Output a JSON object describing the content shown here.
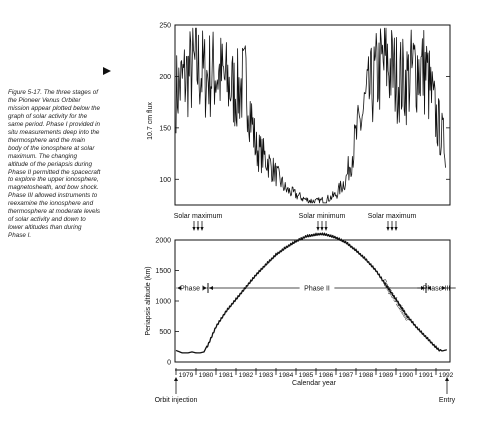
{
  "caption": {
    "lines": [
      "Figure 5-17. The three stages of",
      "the Pioneer Venus Orbiter",
      "mission appear plotted below the",
      "graph of solar activity for the",
      "same period. Phase I provided in",
      "situ measurements deep into the",
      "thermosphere and the main",
      "body of the ionosphere at solar",
      "maximum. The changing",
      "altitude of the periapsis during",
      "Phase II permitted the spacecraft",
      "to explore the upper ionosphere,",
      "magnetosheath, and bow shock.",
      "Phase III allowed instruments to",
      "reexamine the ionosphere and",
      "thermosphere at moderate levels",
      "of solar activity and down to",
      "lower altitudes than during",
      "Phase I."
    ]
  },
  "chart_data": [
    {
      "type": "line",
      "title": "",
      "ylabel": "10.7 cm flux",
      "ylim": [
        75,
        250
      ],
      "yticks": [
        100,
        150,
        200,
        250
      ],
      "x_range": [
        1978.95,
        1992.7
      ],
      "grid": false,
      "series": [
        {
          "x": [
            1979.0,
            1979.5,
            1980.0,
            1980.5,
            1981.0,
            1981.5,
            1982.0,
            1982.5,
            1983.0,
            1983.5,
            1984.0,
            1984.5,
            1985.0,
            1985.5,
            1986.0,
            1986.5,
            1987.0,
            1987.5,
            1988.0,
            1988.5,
            1989.0,
            1989.5,
            1990.0,
            1990.5,
            1991.0,
            1991.5,
            1992.0,
            1992.5
          ],
          "y": [
            185,
            200,
            210,
            200,
            205,
            195,
            185,
            195,
            130,
            120,
            105,
            90,
            85,
            80,
            78,
            80,
            85,
            100,
            140,
            175,
            200,
            215,
            200,
            195,
            210,
            205,
            160,
            130
          ]
        }
      ],
      "annotations": [
        {
          "label": "Solar maximum",
          "x": 1980.1
        },
        {
          "label": "Solar minimum",
          "x": 1986.3
        },
        {
          "label": "Solar maximum",
          "x": 1989.8
        }
      ]
    },
    {
      "type": "line",
      "title": "",
      "xlabel": "Calendar year",
      "ylabel": "Periapsis altitude (km)",
      "ylim": [
        0,
        2000
      ],
      "yticks": [
        0,
        500,
        1000,
        1500,
        2000
      ],
      "x_range": [
        1978.95,
        1992.7
      ],
      "grid": false,
      "tick_labels": [
        "1979",
        "1980",
        "1981",
        "1982",
        "1983",
        "1984",
        "1985",
        "1986",
        "1987",
        "1988",
        "1989",
        "1990",
        "1991",
        "1992"
      ],
      "series": [
        {
          "name": "Periapsis altitude",
          "x": [
            1979.0,
            1979.3,
            1979.6,
            1979.8,
            1980.0,
            1980.2,
            1980.4,
            1980.6,
            1980.8,
            1981.0,
            1981.5,
            1982.0,
            1982.5,
            1983.0,
            1983.5,
            1984.0,
            1984.5,
            1985.0,
            1985.5,
            1986.0,
            1986.25,
            1986.5,
            1987.0,
            1987.5,
            1988.0,
            1988.5,
            1989.0,
            1989.5,
            1990.0,
            1990.5,
            1991.0,
            1991.5,
            1992.0,
            1992.3,
            1992.55
          ],
          "y": [
            190,
            150,
            150,
            165,
            150,
            150,
            165,
            300,
            450,
            600,
            850,
            1050,
            1250,
            1450,
            1620,
            1780,
            1900,
            2000,
            2080,
            2110,
            2120,
            2110,
            2060,
            1980,
            1850,
            1700,
            1520,
            1280,
            1050,
            800,
            600,
            430,
            260,
            180,
            200
          ]
        }
      ],
      "phases": [
        {
          "label": "Phase I",
          "start": 1979.0,
          "end": 1980.6
        },
        {
          "label": "Phase II",
          "start": 1980.6,
          "end": 1991.5
        },
        {
          "label": "Phase III",
          "start": 1991.5,
          "end": 1992.55
        }
      ],
      "annotations": [
        {
          "label": "Orbit injection",
          "x": 1979.0
        },
        {
          "label": "Entry",
          "x": 1992.55
        }
      ]
    }
  ]
}
